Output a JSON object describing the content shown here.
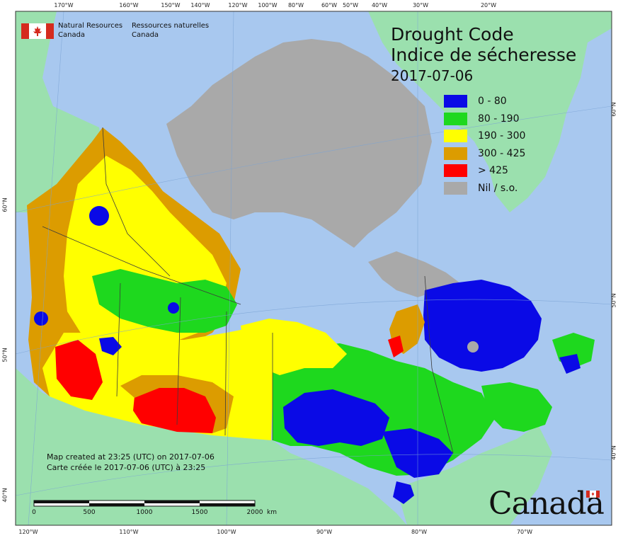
{
  "agency": {
    "name_en_line1": "Natural Resources",
    "name_en_line2": "Canada",
    "name_fr_line1": "Ressources naturelles",
    "name_fr_line2": "Canada"
  },
  "title": {
    "en": "Drought Code",
    "fr": "Indice de sécheresse",
    "date": "2017-07-06"
  },
  "legend": [
    {
      "label": "0 - 80",
      "color": "#0a0ae6"
    },
    {
      "label": "80 - 190",
      "color": "#1ed81e"
    },
    {
      "label": "190 - 300",
      "color": "#ffff00"
    },
    {
      "label": "300 - 425",
      "color": "#dc9c00"
    },
    {
      "label": "> 425",
      "color": "#ff0000"
    },
    {
      "label": "Nil / s.o.",
      "color": "#a9a9a9"
    }
  ],
  "credits": {
    "line_en": "Map created at 23:25 (UTC) on 2017-07-06",
    "line_fr": "Carte créée le 2017-07-06 (UTC) à 23:25"
  },
  "scale_bar": {
    "labels": [
      "0",
      "500",
      "1000",
      "1500",
      "2000"
    ],
    "unit": "km"
  },
  "axes": {
    "top_longitudes": [
      "170°W",
      "160°W",
      "150°W",
      "140°W",
      "120°W",
      "100°W",
      "80°W",
      "60°W",
      "50°W",
      "40°W",
      "30°W",
      "20°W"
    ],
    "bottom_longitudes": [
      "120°W",
      "110°W",
      "100°W",
      "90°W",
      "80°W",
      "70°W"
    ],
    "left_latitudes": [
      "60°N",
      "50°N",
      "40°N"
    ],
    "right_latitudes": [
      "60°N",
      "50°N",
      "40°N"
    ]
  },
  "wordmark": "Canada",
  "colors": {
    "ocean": "#a8c8ef",
    "foreign_land": "#9be0ae",
    "no_data": "#a9a9a9",
    "boundary": "#3c3c3c"
  }
}
